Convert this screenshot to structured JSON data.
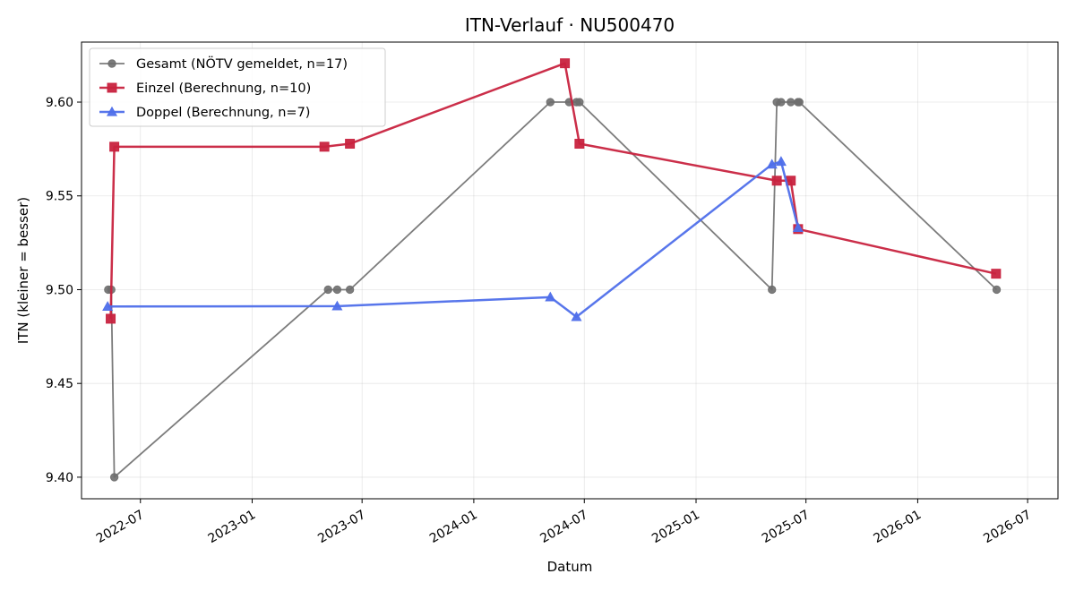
{
  "chart_data": {
    "type": "line",
    "title": "ITN-Verlauf · NU500470",
    "xlabel": "Datum",
    "ylabel": "ITN  (kleiner = besser)",
    "x_type": "date",
    "xlim": [
      "2022-03-26",
      "2026-08-20"
    ],
    "ylim": [
      9.3885,
      9.632
    ],
    "x_ticks": [
      {
        "date": "2022-07-01",
        "label": "2022-07"
      },
      {
        "date": "2023-01-01",
        "label": "2023-01"
      },
      {
        "date": "2023-07-01",
        "label": "2023-07"
      },
      {
        "date": "2024-01-01",
        "label": "2024-01"
      },
      {
        "date": "2024-07-01",
        "label": "2024-07"
      },
      {
        "date": "2025-01-01",
        "label": "2025-01"
      },
      {
        "date": "2025-07-01",
        "label": "2025-07"
      },
      {
        "date": "2026-01-01",
        "label": "2026-01"
      },
      {
        "date": "2026-07-01",
        "label": "2026-07"
      }
    ],
    "y_ticks": [
      {
        "value": 9.4,
        "label": "9.40"
      },
      {
        "value": 9.45,
        "label": "9.45"
      },
      {
        "value": 9.5,
        "label": "9.50"
      },
      {
        "value": 9.55,
        "label": "9.55"
      },
      {
        "value": 9.6,
        "label": "9.60"
      }
    ],
    "grid": true,
    "legend_position": "top-left",
    "series": [
      {
        "name": "Gesamt (NÖTV gemeldet, n=17)",
        "color": "#6e6e6e",
        "marker": "circle",
        "points": [
          {
            "x": "2022-05-09",
            "y": 9.5
          },
          {
            "x": "2022-05-14",
            "y": 9.5
          },
          {
            "x": "2022-05-19",
            "y": 9.4
          },
          {
            "x": "2023-05-06",
            "y": 9.5
          },
          {
            "x": "2023-05-21",
            "y": 9.5
          },
          {
            "x": "2023-06-11",
            "y": 9.5
          },
          {
            "x": "2024-05-06",
            "y": 9.6
          },
          {
            "x": "2024-06-06",
            "y": 9.6
          },
          {
            "x": "2024-06-18",
            "y": 9.6
          },
          {
            "x": "2024-06-23",
            "y": 9.6
          },
          {
            "x": "2025-05-06",
            "y": 9.5
          },
          {
            "x": "2025-05-14",
            "y": 9.6
          },
          {
            "x": "2025-05-21",
            "y": 9.6
          },
          {
            "x": "2025-06-06",
            "y": 9.6
          },
          {
            "x": "2025-06-18",
            "y": 9.6
          },
          {
            "x": "2025-06-20",
            "y": 9.6
          },
          {
            "x": "2026-05-11",
            "y": 9.5
          }
        ]
      },
      {
        "name": "Einzel (Berechnung, n=10)",
        "color": "#c8233f",
        "marker": "square",
        "points": [
          {
            "x": "2022-05-13",
            "y": 9.4845
          },
          {
            "x": "2022-05-19",
            "y": 9.5762
          },
          {
            "x": "2023-04-30",
            "y": 9.5762
          },
          {
            "x": "2023-06-11",
            "y": 9.5778
          },
          {
            "x": "2024-05-30",
            "y": 9.6207
          },
          {
            "x": "2024-06-23",
            "y": 9.5778
          },
          {
            "x": "2025-05-14",
            "y": 9.5581
          },
          {
            "x": "2025-06-06",
            "y": 9.5581
          },
          {
            "x": "2025-06-18",
            "y": 9.5323
          },
          {
            "x": "2026-05-10",
            "y": 9.5085
          }
        ]
      },
      {
        "name": "Doppel (Berechnung, n=7)",
        "color": "#4f6fea",
        "marker": "triangle",
        "points": [
          {
            "x": "2022-05-08",
            "y": 9.491
          },
          {
            "x": "2023-05-21",
            "y": 9.4912
          },
          {
            "x": "2024-05-06",
            "y": 9.496
          },
          {
            "x": "2024-06-18",
            "y": 9.4855
          },
          {
            "x": "2025-05-06",
            "y": 9.5668
          },
          {
            "x": "2025-05-21",
            "y": 9.5683
          },
          {
            "x": "2025-06-18",
            "y": 9.533
          }
        ]
      }
    ]
  }
}
